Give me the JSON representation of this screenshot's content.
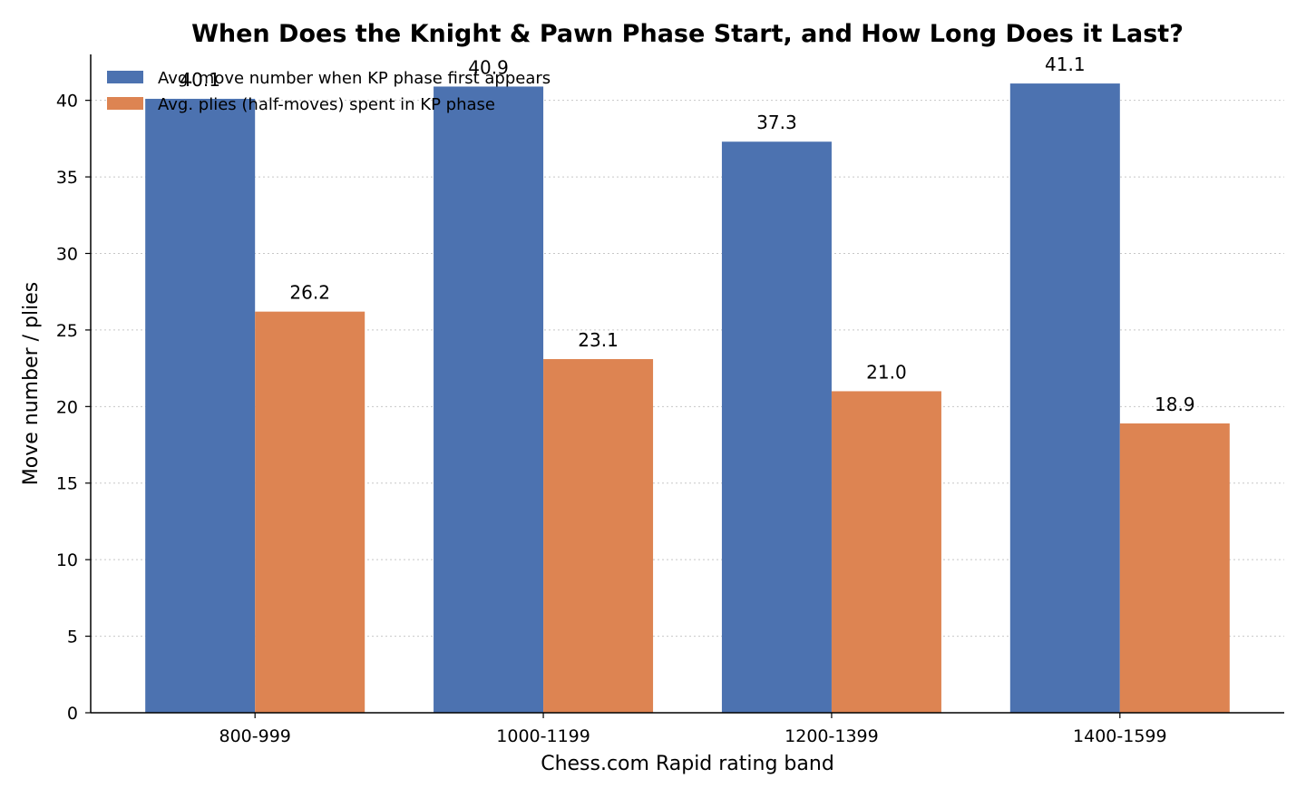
{
  "chart_data": {
    "type": "bar",
    "title": "When Does the Knight & Pawn Phase Start, and How Long Does it Last?",
    "xlabel": "Chess.com Rapid rating band",
    "ylabel": "Move number / plies",
    "categories": [
      "800-999",
      "1000-1199",
      "1200-1399",
      "1400-1599"
    ],
    "series": [
      {
        "name": "Avg. move number when KP phase first appears",
        "values": [
          40.1,
          40.9,
          37.3,
          41.1
        ],
        "labels": [
          "40.1",
          "40.9",
          "37.3",
          "41.1"
        ],
        "color": "#4c72b0"
      },
      {
        "name": "Avg. plies (half-moves) spent in KP phase",
        "values": [
          26.2,
          23.1,
          21.0,
          18.9
        ],
        "labels": [
          "26.2",
          "23.1",
          "21.0",
          "18.9"
        ],
        "color": "#dd8452"
      }
    ],
    "ylim": [
      0,
      43
    ],
    "yticks": [
      0,
      5,
      10,
      15,
      20,
      25,
      30,
      35,
      40
    ],
    "grid": "horizontal dotted",
    "legend_position": "top-left"
  }
}
